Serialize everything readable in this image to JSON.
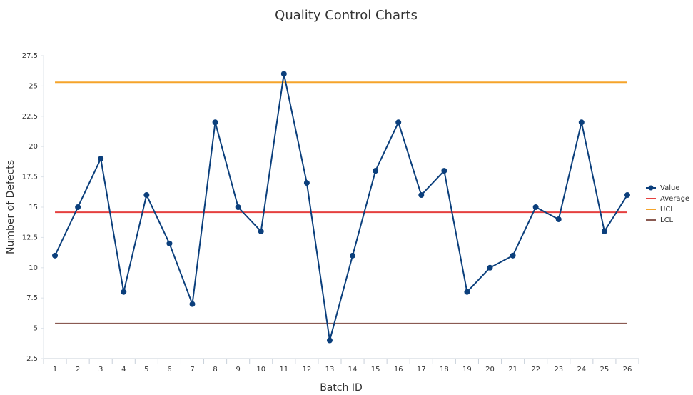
{
  "chart_data": {
    "type": "line",
    "title": "Quality Control Charts",
    "x_label": "Batch ID",
    "y_label": "Number of Defects",
    "categories": [
      "1",
      "2",
      "3",
      "4",
      "5",
      "6",
      "7",
      "8",
      "9",
      "10",
      "11",
      "12",
      "13",
      "14",
      "15",
      "16",
      "17",
      "18",
      "19",
      "20",
      "21",
      "22",
      "23",
      "24",
      "25",
      "26"
    ],
    "series": [
      {
        "name": "Value",
        "color": "#0b3f7c",
        "values": [
          11,
          15,
          19,
          8,
          16,
          12,
          7,
          22,
          15,
          13,
          26,
          17,
          4,
          11,
          18,
          22,
          16,
          18,
          8,
          10,
          11,
          15,
          14,
          22,
          13,
          16
        ]
      }
    ],
    "reference_lines": [
      {
        "name": "Average",
        "color": "#e5403f",
        "value": 14.58
      },
      {
        "name": "UCL",
        "color": "#f5a42a",
        "value": 25.3
      },
      {
        "name": "LCL",
        "color": "#8a5a52",
        "value": 5.4
      }
    ],
    "ylim": [
      2.5,
      27.5
    ],
    "yticks": [
      2.5,
      5,
      7.5,
      10,
      12.5,
      15,
      17.5,
      20,
      22.5,
      25,
      27.5
    ],
    "legend": "right"
  }
}
